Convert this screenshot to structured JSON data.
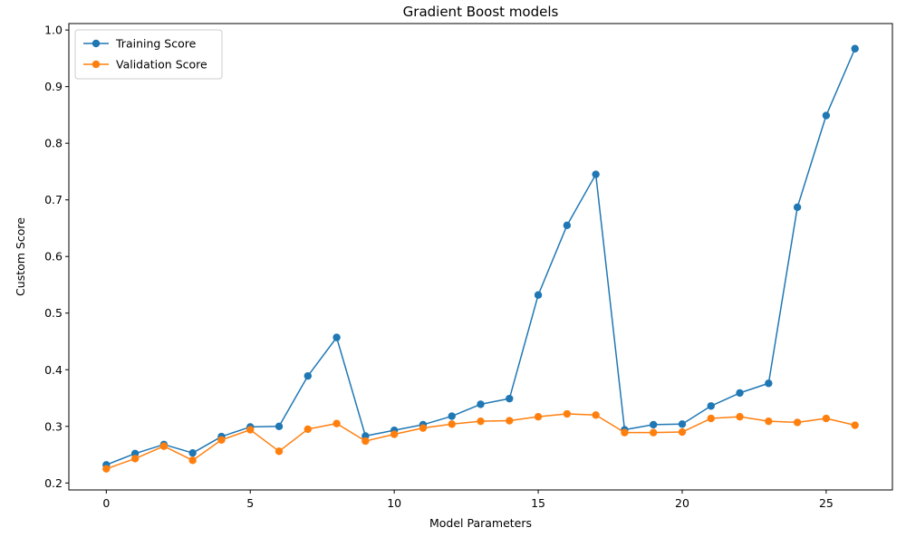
{
  "chart_data": {
    "type": "line",
    "title": "Gradient Boost models",
    "xlabel": "Model Parameters",
    "ylabel": "Custom Score",
    "xlim": [
      -1.3,
      27.3
    ],
    "ylim": [
      0.1877,
      1.0114
    ],
    "xticks": [
      0,
      5,
      10,
      15,
      20,
      25
    ],
    "yticks": [
      0.2,
      0.3,
      0.4,
      0.5,
      0.6,
      0.7,
      0.8,
      0.9,
      1.0
    ],
    "ytick_labels": [
      "0.2",
      "0.3",
      "0.4",
      "0.5",
      "0.6",
      "0.7",
      "0.8",
      "0.9",
      "1.0"
    ],
    "grid": false,
    "legend_position": "top-left",
    "x": [
      0,
      1,
      2,
      3,
      4,
      5,
      6,
      7,
      8,
      9,
      10,
      11,
      12,
      13,
      14,
      15,
      16,
      17,
      18,
      19,
      20,
      21,
      22,
      23,
      24,
      25,
      26
    ],
    "series": [
      {
        "name": "Training Score",
        "color": "#1f77b4",
        "marker": "circle",
        "values": [
          0.232,
          0.252,
          0.268,
          0.253,
          0.282,
          0.299,
          0.3,
          0.389,
          0.457,
          0.283,
          0.293,
          0.303,
          0.318,
          0.339,
          0.349,
          0.532,
          0.655,
          0.745,
          0.294,
          0.303,
          0.304,
          0.336,
          0.359,
          0.376,
          0.687,
          0.849,
          0.967
        ]
      },
      {
        "name": "Validation Score",
        "color": "#ff7f0e",
        "marker": "circle",
        "values": [
          0.225,
          0.243,
          0.265,
          0.24,
          0.276,
          0.294,
          0.256,
          0.295,
          0.305,
          0.274,
          0.286,
          0.297,
          0.304,
          0.309,
          0.31,
          0.317,
          0.322,
          0.32,
          0.289,
          0.289,
          0.29,
          0.314,
          0.317,
          0.309,
          0.307,
          0.314,
          0.302
        ]
      }
    ]
  }
}
